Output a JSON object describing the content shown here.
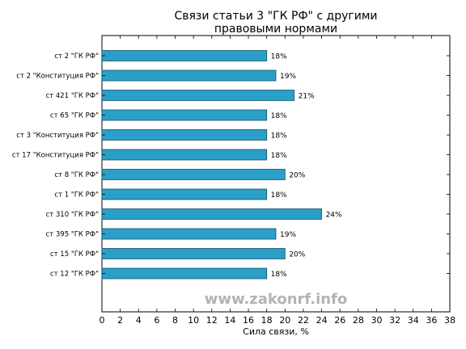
{
  "chart_data": {
    "type": "bar",
    "orientation": "horizontal",
    "title": "Связи статьи 3 \"ГК РФ\" с другими правовыми нормами",
    "title_lines": [
      "Связи статьи 3 \"ГК РФ\" с другими",
      "правовыми нормами"
    ],
    "xlabel": "Сила связи, %",
    "ylabel": "",
    "xlim": [
      0,
      38
    ],
    "x_ticks": [
      0,
      2,
      4,
      6,
      8,
      10,
      12,
      14,
      16,
      18,
      20,
      22,
      24,
      26,
      28,
      30,
      32,
      34,
      36,
      38
    ],
    "categories": [
      "ст 2 \"ГК РФ\"",
      "ст 2 \"Конституция РФ\"",
      "ст 421 \"ГК РФ\"",
      "ст 65 \"ГК РФ\"",
      "ст 3 \"Конституция РФ\"",
      "ст 17 \"Конституция РФ\"",
      "ст 8 \"ГК РФ\"",
      "ст 1 \"ГК РФ\"",
      "ст 310 \"ГК РФ\"",
      "ст 395 \"ГК РФ\"",
      "ст 15 \"ГК РФ\"",
      "ст 12 \"ГК РФ\""
    ],
    "values": [
      18,
      19,
      21,
      18,
      18,
      18,
      20,
      18,
      24,
      19,
      20,
      18
    ],
    "data_labels": [
      "18%",
      "19%",
      "21%",
      "18%",
      "18%",
      "18%",
      "20%",
      "18%",
      "24%",
      "19%",
      "20%",
      "18%"
    ],
    "bar_color": "#2a9fc7",
    "bar_edge_color": "#1f4f66",
    "grid": false,
    "legend": "none"
  },
  "watermark": "www.zakonrf.info",
  "watermark_color": "#b3b3b3"
}
